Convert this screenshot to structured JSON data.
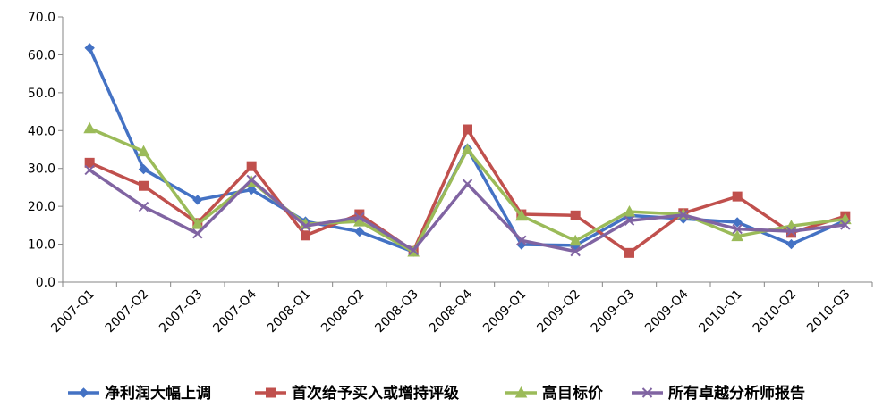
{
  "chart_data": {
    "type": "line",
    "title": "",
    "xlabel": "",
    "ylabel": "",
    "ylim": [
      0,
      70
    ],
    "yticks": [
      "0.0",
      "10.0",
      "20.0",
      "30.0",
      "40.0",
      "50.0",
      "60.0",
      "70.0"
    ],
    "grid": false,
    "legend_position": "bottom",
    "categories": [
      "2007-Q1",
      "2007-Q2",
      "2007-Q3",
      "2007-Q4",
      "2008-Q1",
      "2008-Q2",
      "2008-Q3",
      "2008-Q4",
      "2009-Q1",
      "2009-Q2",
      "2009-Q3",
      "2009-Q4",
      "2010-Q1",
      "2010-Q2",
      "2010-Q3"
    ],
    "series": [
      {
        "name": "净利润大幅上调",
        "color": "#4472C4",
        "marker": "diamond",
        "values": [
          61.8,
          29.8,
          21.7,
          24.4,
          16.0,
          13.3,
          8.0,
          35.3,
          9.9,
          9.7,
          17.6,
          16.7,
          15.8,
          10.0,
          16.2
        ]
      },
      {
        "name": "首次给予买入或增持评级",
        "color": "#C0504D",
        "marker": "square",
        "values": [
          31.5,
          25.4,
          15.6,
          30.6,
          12.3,
          17.9,
          8.2,
          40.3,
          17.9,
          17.6,
          7.7,
          18.2,
          22.6,
          13.0,
          17.4
        ]
      },
      {
        "name": "高目标价",
        "color": "#9BBB59",
        "marker": "triangle",
        "values": [
          40.6,
          34.5,
          15.3,
          26.5,
          15.3,
          16.0,
          8.0,
          35.0,
          17.5,
          10.9,
          18.6,
          17.9,
          12.1,
          14.8,
          16.6
        ]
      },
      {
        "name": "所有卓越分析师报告",
        "color": "#8064A2",
        "marker": "x",
        "values": [
          29.6,
          19.9,
          12.8,
          27.0,
          14.8,
          17.1,
          8.4,
          25.9,
          11.0,
          8.1,
          16.2,
          17.7,
          14.0,
          13.4,
          15.1
        ]
      }
    ]
  }
}
